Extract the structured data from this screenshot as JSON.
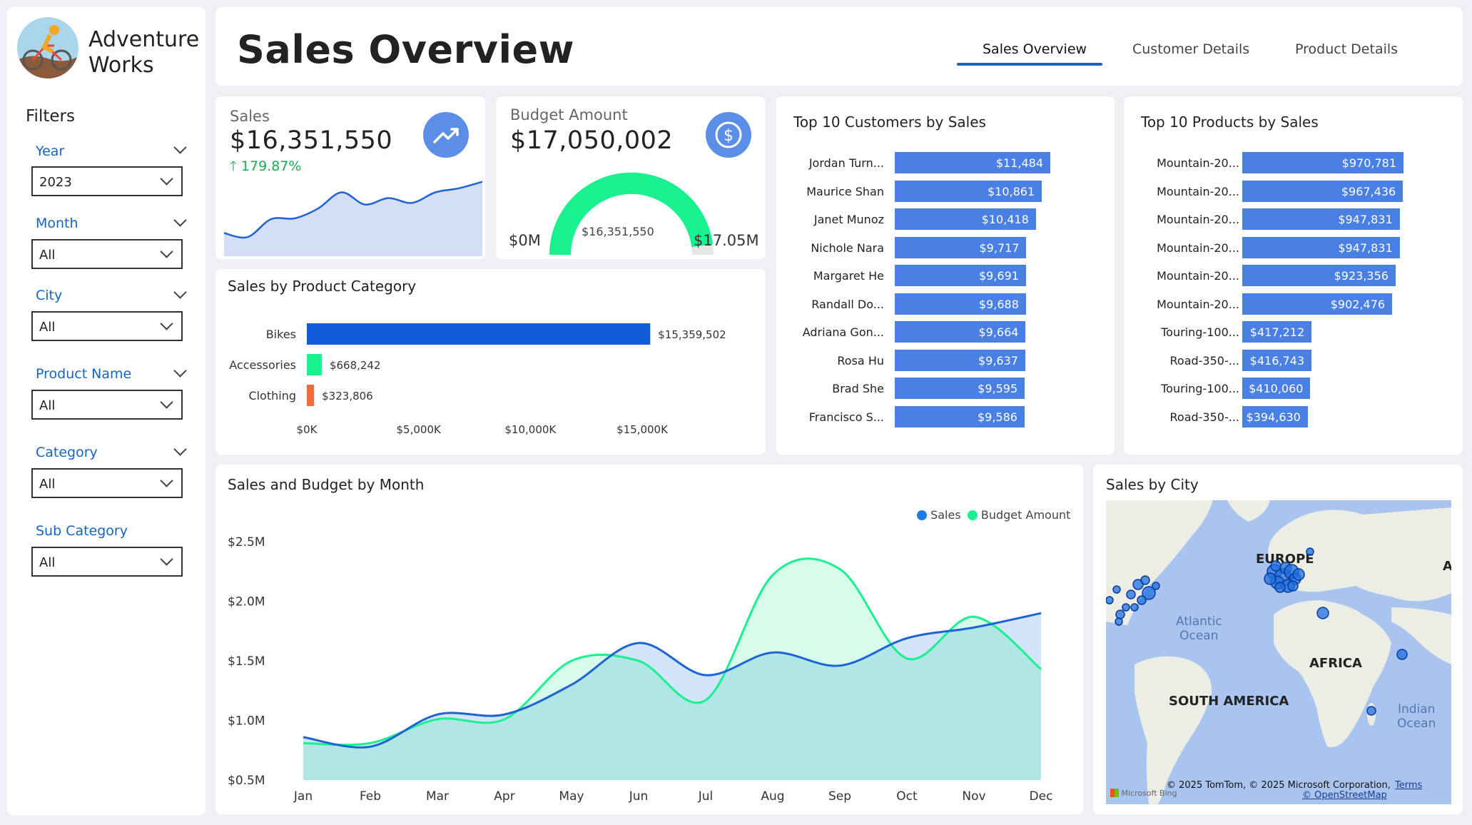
{
  "brand": {
    "line1": "Adventure",
    "line2": "Works"
  },
  "filters": {
    "title": "Filters",
    "items": [
      {
        "label": "Year",
        "value": "2023"
      },
      {
        "label": "Month",
        "value": "All"
      },
      {
        "label": "City",
        "value": "All"
      },
      {
        "label": "Product Name",
        "value": "All"
      },
      {
        "label": "Category",
        "value": "All"
      },
      {
        "label": "Sub Category",
        "value": "All"
      }
    ]
  },
  "header": {
    "title": "Sales Overview",
    "tabs": [
      {
        "label": "Sales Overview",
        "active": true
      },
      {
        "label": "Customer Details",
        "active": false
      },
      {
        "label": "Product Details",
        "active": false
      }
    ]
  },
  "kpi_sales": {
    "label": "Sales",
    "value": "$16,351,550",
    "change": "179.87%",
    "icon": "trending-up-icon"
  },
  "kpi_budget": {
    "label": "Budget Amount",
    "value": "$17,050,002",
    "icon": "dollar-icon",
    "gauge_min": "$0M",
    "gauge_max": "$17.05M",
    "gauge_value": "$16,351,550"
  },
  "colors": {
    "blue": "#1565c0",
    "bar": "#4a7fe3",
    "bike": "#0f5bd8",
    "green": "#19f08e",
    "orange": "#f26b3a",
    "sales_line": "#1e63d6",
    "budget_line": "#19f08e"
  },
  "category_chart": {
    "title": "Sales by Product Category",
    "type": "bar",
    "categories": [
      "Bikes",
      "Accessories",
      "Clothing"
    ],
    "labels": [
      "$15,359,502",
      "$668,242",
      "$323,806"
    ],
    "values": [
      15359502,
      668242,
      323806
    ],
    "ticks": [
      "$0K",
      "$5,000K",
      "$10,000K",
      "$15,000K"
    ]
  },
  "top_customers": {
    "title": "Top 10 Customers by Sales",
    "names": [
      "Jordan Turn...",
      "Maurice Shan",
      "Janet Munoz",
      "Nichole Nara",
      "Margaret He",
      "Randall Do...",
      "Adriana Gon...",
      "Rosa Hu",
      "Brad She",
      "Francisco S..."
    ],
    "labels": [
      "$11,484",
      "$10,861",
      "$10,418",
      "$9,717",
      "$9,691",
      "$9,688",
      "$9,664",
      "$9,637",
      "$9,595",
      "$9,586"
    ],
    "values": [
      11484,
      10861,
      10418,
      9717,
      9691,
      9688,
      9664,
      9637,
      9595,
      9586
    ]
  },
  "top_products": {
    "title": "Top 10 Products by Sales",
    "names": [
      "Mountain-20...",
      "Mountain-20...",
      "Mountain-20...",
      "Mountain-20...",
      "Mountain-20...",
      "Mountain-20...",
      "Touring-100...",
      "Road-350-...",
      "Touring-100...",
      "Road-350-..."
    ],
    "labels": [
      "$970,781",
      "$967,436",
      "$947,831",
      "$947,831",
      "$923,356",
      "$902,476",
      "$417,212",
      "$416,743",
      "$410,060",
      "$394,630"
    ],
    "values": [
      970781,
      967436,
      947831,
      947831,
      923356,
      902476,
      417212,
      416743,
      410060,
      394630
    ]
  },
  "chart_data": {
    "type": "area",
    "title": "Sales and Budget by Month",
    "categories": [
      "Jan",
      "Feb",
      "Mar",
      "Apr",
      "May",
      "Jun",
      "Jul",
      "Aug",
      "Sep",
      "Oct",
      "Nov",
      "Dec"
    ],
    "series": [
      {
        "name": "Sales",
        "values": [
          0.86,
          0.78,
          1.05,
          1.05,
          1.3,
          1.65,
          1.38,
          1.57,
          1.46,
          1.69,
          1.78,
          1.9
        ]
      },
      {
        "name": "Budget Amount",
        "values": [
          0.81,
          0.81,
          1.01,
          1.01,
          1.5,
          1.5,
          1.17,
          2.22,
          2.27,
          1.52,
          1.87,
          1.43
        ]
      }
    ],
    "ytick_labels": [
      "$2.5M",
      "$2.0M",
      "$1.5M",
      "$1.0M",
      "$0.5M"
    ],
    "ylim": [
      0.5,
      2.5
    ],
    "legend": "top-right"
  },
  "kpi_trend": [
    0.25,
    0.2,
    0.42,
    0.43,
    0.55,
    0.75,
    0.6,
    0.68,
    0.62,
    0.75,
    0.8,
    0.88
  ],
  "map": {
    "title": "Sales by City",
    "labels": [
      "EUROPE",
      "Atlantic\nOcean",
      "AFRICA",
      "SOUTH AMERICA",
      "Indian\nOcean",
      "A"
    ],
    "copyright": "© 2025 TomTom, © 2025 Microsoft Corporation,",
    "terms": "Terms",
    "osm": "© OpenStreetMap",
    "bing": "Microsoft Bing"
  }
}
